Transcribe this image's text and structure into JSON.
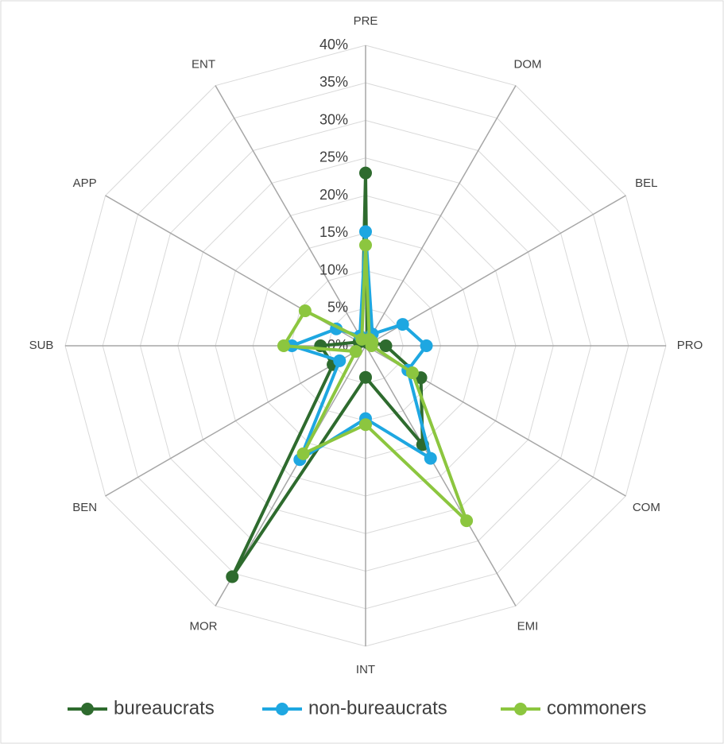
{
  "chart_data": {
    "type": "radar",
    "categories": [
      "PRE",
      "DOM",
      "BEL",
      "PRO",
      "COM",
      "EMI",
      "INT",
      "MOR",
      "BEN",
      "SUB",
      "APP",
      "ENT"
    ],
    "series": [
      {
        "name": "bureaucrats",
        "color": "#2e6b2e",
        "values": [
          23,
          0.5,
          1,
          2.7,
          8.5,
          15.2,
          4.2,
          35.5,
          5,
          6,
          1,
          1
        ]
      },
      {
        "name": "non-bureaucrats",
        "color": "#1ea7e1",
        "values": [
          15.2,
          1.8,
          5.7,
          8.1,
          6.5,
          17.3,
          9.7,
          17.5,
          4,
          9.8,
          4.5,
          1.5
        ]
      },
      {
        "name": "commoners",
        "color": "#8cc63f",
        "values": [
          13.4,
          1,
          1,
          0.8,
          7.2,
          26.9,
          10.5,
          16.6,
          1.5,
          10.9,
          9.3,
          1
        ]
      }
    ],
    "ylim": [
      0,
      40
    ],
    "yticks": [
      {
        "value": 0,
        "label": "0%"
      },
      {
        "value": 5,
        "label": "5%"
      },
      {
        "value": 10,
        "label": "10%"
      },
      {
        "value": 15,
        "label": "15%"
      },
      {
        "value": 20,
        "label": "20%"
      },
      {
        "value": 25,
        "label": "25%"
      },
      {
        "value": 30,
        "label": "30%"
      },
      {
        "value": 35,
        "label": "35%"
      },
      {
        "value": 40,
        "label": "40%"
      }
    ],
    "grid": true,
    "legend": "bottom"
  }
}
